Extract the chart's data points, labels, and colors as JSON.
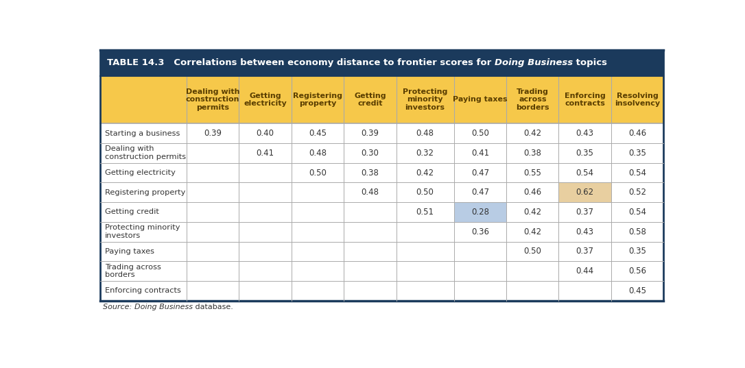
{
  "header_bg": "#1b3a5c",
  "col_header_bg": "#f6c84a",
  "col_header_text_color": "#5a3e00",
  "body_bg": "#ffffff",
  "grid_color": "#aaaaaa",
  "border_color": "#1b3a5c",
  "highlight_blue_bg": "#b8cce4",
  "highlight_tan_bg": "#e8cfa0",
  "col_headers": [
    "Dealing with\nconstruction\npermits",
    "Getting\nelectricity",
    "Registering\nproperty",
    "Getting\ncredit",
    "Protecting\nminority\ninvestors",
    "Paying taxes",
    "Trading\nacross\nborders",
    "Enforcing\ncontracts",
    "Resolving\ninsolvency"
  ],
  "row_labels": [
    "Starting a business",
    "Dealing with\nconstruction permits",
    "Getting electricity",
    "Registering property",
    "Getting credit",
    "Protecting minority\ninvestors",
    "Paying taxes",
    "Trading across\nborders",
    "Enforcing contracts"
  ],
  "data": [
    [
      "0.39",
      "0.40",
      "0.45",
      "0.39",
      "0.48",
      "0.50",
      "0.42",
      "0.43",
      "0.46"
    ],
    [
      "",
      "0.41",
      "0.48",
      "0.30",
      "0.32",
      "0.41",
      "0.38",
      "0.35",
      "0.35"
    ],
    [
      "",
      "",
      "0.50",
      "0.38",
      "0.42",
      "0.47",
      "0.55",
      "0.54",
      "0.54"
    ],
    [
      "",
      "",
      "",
      "0.48",
      "0.50",
      "0.47",
      "0.46",
      "0.62",
      "0.52"
    ],
    [
      "",
      "",
      "",
      "",
      "0.51",
      "0.28",
      "0.42",
      "0.37",
      "0.54"
    ],
    [
      "",
      "",
      "",
      "",
      "",
      "0.36",
      "0.42",
      "0.43",
      "0.58"
    ],
    [
      "",
      "",
      "",
      "",
      "",
      "",
      "0.50",
      "0.37",
      "0.35"
    ],
    [
      "",
      "",
      "",
      "",
      "",
      "",
      "",
      "0.44",
      "0.56"
    ],
    [
      "",
      "",
      "",
      "",
      "",
      "",
      "",
      "",
      "0.45"
    ]
  ],
  "special_cells": [
    {
      "row": 3,
      "col": 7,
      "bg": "#e8cfa0"
    },
    {
      "row": 4,
      "col": 5,
      "bg": "#b8cce4"
    }
  ],
  "col_widths_rel": [
    1.65,
    1.0,
    1.0,
    1.0,
    1.0,
    1.1,
    1.0,
    1.0,
    1.0,
    1.0
  ],
  "title_fontsize": 9.5,
  "col_header_fontsize": 8.0,
  "data_fontsize": 8.5,
  "row_label_fontsize": 8.2,
  "source_fontsize": 8.0
}
